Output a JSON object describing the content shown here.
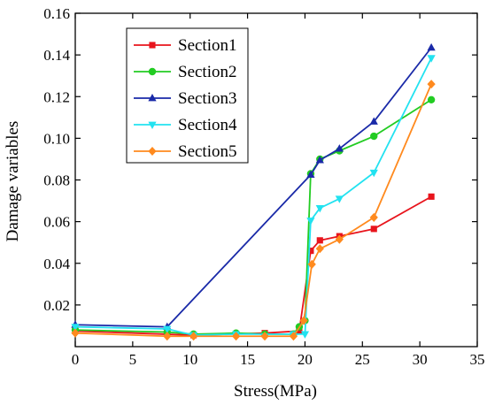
{
  "chart_data": {
    "type": "line",
    "xlabel": "Stress(MPa)",
    "ylabel": "Damage variables",
    "xlim": [
      0,
      35
    ],
    "ylim": [
      0,
      0.16
    ],
    "xticks": [
      0,
      5,
      10,
      15,
      20,
      25,
      30,
      35
    ],
    "xtick_labels": [
      "0",
      "5",
      "10",
      "15",
      "20",
      "25",
      "30",
      "35"
    ],
    "yticks": [
      0.02,
      0.04,
      0.06,
      0.08,
      0.1,
      0.12,
      0.14,
      0.16
    ],
    "ytick_labels": [
      "0.02",
      "0.04",
      "0.06",
      "0.08",
      "0.10",
      "0.12",
      "0.14",
      "0.16"
    ],
    "grid": false,
    "legend_position": "top-left",
    "series": [
      {
        "name": "Section1",
        "color": "#e8141c",
        "marker": "square",
        "x": [
          0,
          10.3,
          16.5,
          19.5,
          20.5,
          21.3,
          23,
          26,
          31
        ],
        "y": [
          0.0075,
          0.0055,
          0.0065,
          0.0075,
          0.046,
          0.051,
          0.053,
          0.0565,
          0.072
        ]
      },
      {
        "name": "Section2",
        "color": "#22cc22",
        "marker": "circle",
        "x": [
          0,
          8,
          10.3,
          14,
          16.5,
          19,
          19.5,
          20,
          20.5,
          21.3,
          23,
          26,
          31
        ],
        "y": [
          0.008,
          0.007,
          0.006,
          0.0065,
          0.006,
          0.006,
          0.0095,
          0.0125,
          0.083,
          0.09,
          0.094,
          0.101,
          0.1185
        ]
      },
      {
        "name": "Section3",
        "color": "#1a2aa8",
        "marker": "triangle-up",
        "x": [
          0,
          8,
          20.5,
          21.3,
          23,
          26,
          31
        ],
        "y": [
          0.0105,
          0.0095,
          0.0825,
          0.0895,
          0.095,
          0.108,
          0.1435
        ]
      },
      {
        "name": "Section4",
        "color": "#22e2f0",
        "marker": "triangle-down",
        "x": [
          0,
          8,
          10.3,
          14,
          19,
          20,
          20.5,
          21.3,
          23,
          26,
          31
        ],
        "y": [
          0.0095,
          0.0085,
          0.0055,
          0.006,
          0.006,
          0.006,
          0.0605,
          0.0665,
          0.071,
          0.0835,
          0.1385
        ]
      },
      {
        "name": "Section5",
        "color": "#ff8a1e",
        "marker": "diamond",
        "x": [
          0,
          8,
          10.3,
          14,
          16.5,
          19,
          19.9,
          20.6,
          21.3,
          23,
          26,
          31
        ],
        "y": [
          0.0065,
          0.005,
          0.005,
          0.005,
          0.005,
          0.005,
          0.0125,
          0.0395,
          0.047,
          0.0515,
          0.062,
          0.126
        ]
      }
    ]
  }
}
